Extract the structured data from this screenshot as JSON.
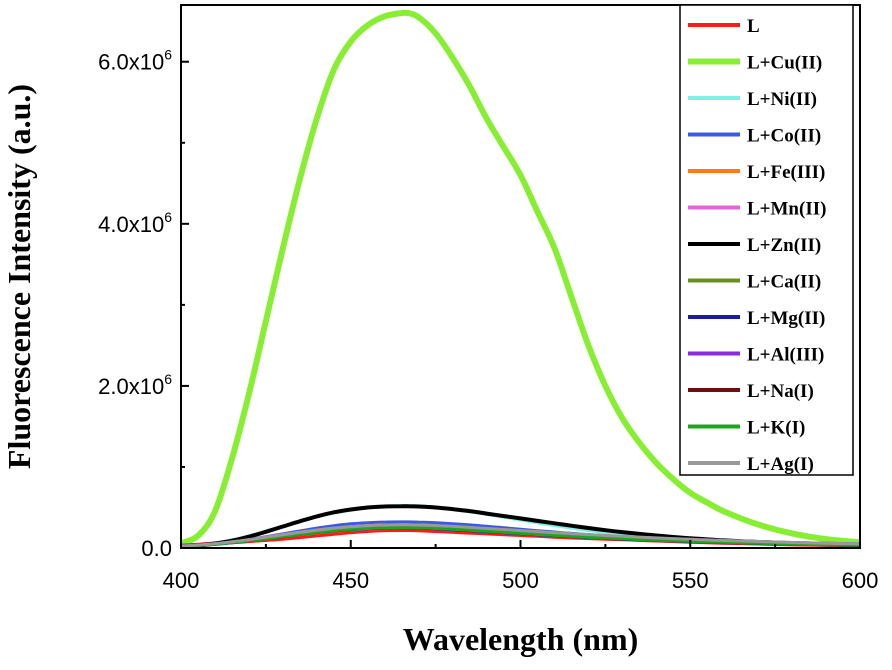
{
  "chart_data": {
    "type": "line",
    "title": "",
    "xlabel": "Wavelength (nm)",
    "ylabel": "Fluorescence Intensity (a.u.)",
    "xlim": [
      400,
      600
    ],
    "ylim": [
      0,
      6700000
    ],
    "x_ticks": [
      400,
      450,
      500,
      550,
      600
    ],
    "x_tick_labels": [
      "400",
      "450",
      "500",
      "550",
      "600"
    ],
    "y_ticks": [
      {
        "value": 0,
        "mantissa": "0.0",
        "exponent": ""
      },
      {
        "value": 2000000,
        "mantissa": "2.0x10",
        "exponent": "6"
      },
      {
        "value": 4000000,
        "mantissa": "4.0x10",
        "exponent": "6"
      },
      {
        "value": 6000000,
        "mantissa": "6.0x10",
        "exponent": "6"
      }
    ],
    "grid": false,
    "legend_position": "top-right",
    "x": [
      400,
      405,
      410,
      415,
      420,
      425,
      430,
      435,
      440,
      445,
      450,
      455,
      460,
      465,
      467,
      470,
      475,
      480,
      485,
      490,
      495,
      500,
      505,
      510,
      515,
      520,
      525,
      530,
      535,
      540,
      545,
      550,
      555,
      560,
      570,
      580,
      590,
      600
    ],
    "series": [
      {
        "name": "L",
        "color": "#ff1a1a",
        "width": 4,
        "values": [
          30000,
          40000,
          55000,
          70000,
          85000,
          100000,
          115000,
          135000,
          155000,
          175000,
          195000,
          210000,
          220000,
          222000,
          222000,
          220000,
          210000,
          200000,
          190000,
          180000,
          170000,
          160000,
          150000,
          140000,
          130000,
          122000,
          115000,
          108000,
          100000,
          92000,
          85000,
          78000,
          72000,
          66000,
          55000,
          45000,
          38000,
          32000
        ]
      },
      {
        "name": "L+Cu(II)",
        "color": "#88ee33",
        "width": 6,
        "values": [
          60000,
          150000,
          450000,
          1100000,
          1900000,
          2800000,
          3700000,
          4550000,
          5300000,
          5900000,
          6250000,
          6450000,
          6560000,
          6600000,
          6600000,
          6550000,
          6350000,
          6050000,
          5700000,
          5300000,
          4950000,
          4600000,
          4150000,
          3700000,
          3100000,
          2500000,
          2000000,
          1600000,
          1300000,
          1050000,
          850000,
          680000,
          560000,
          450000,
          290000,
          180000,
          110000,
          70000
        ]
      },
      {
        "name": "L+Ni(II)",
        "color": "#7ff0e6",
        "width": 3,
        "values": [
          20000,
          35000,
          60000,
          100000,
          150000,
          210000,
          270000,
          330000,
          385000,
          430000,
          465000,
          495000,
          515000,
          525000,
          525000,
          520000,
          505000,
          480000,
          450000,
          415000,
          380000,
          345000,
          310000,
          275000,
          245000,
          215000,
          190000,
          168000,
          150000,
          135000,
          120000,
          108000,
          97000,
          87000,
          70000,
          57000,
          46000,
          38000
        ]
      },
      {
        "name": "L+Co(II)",
        "color": "#3b5bdb",
        "width": 3,
        "values": [
          20000,
          30000,
          50000,
          75000,
          105000,
          140000,
          175000,
          210000,
          245000,
          275000,
          298000,
          312000,
          320000,
          322000,
          322000,
          320000,
          312000,
          300000,
          285000,
          268000,
          250000,
          232000,
          214000,
          197000,
          180000,
          165000,
          150000,
          137000,
          125000,
          114000,
          104000,
          95000,
          87000,
          80000,
          67000,
          56000,
          47000,
          40000
        ]
      },
      {
        "name": "L+Fe(III)",
        "color": "#ff7a1a",
        "width": 3,
        "values": [
          25000,
          35000,
          50000,
          70000,
          92000,
          115000,
          140000,
          163000,
          185000,
          205000,
          222000,
          235000,
          242000,
          245000,
          245000,
          243000,
          236000,
          226000,
          214000,
          201000,
          188000,
          175000,
          162000,
          150000,
          139000,
          129000,
          120000,
          112000,
          104000,
          96000,
          89000,
          82000,
          75000,
          69000,
          58000,
          48000,
          40000,
          34000
        ]
      },
      {
        "name": "L+Mn(II)",
        "color": "#e066d8",
        "width": 3,
        "values": [
          25000,
          35000,
          55000,
          78000,
          105000,
          135000,
          165000,
          195000,
          222000,
          245000,
          262000,
          273000,
          280000,
          282000,
          282000,
          280000,
          273000,
          262000,
          250000,
          237000,
          224000,
          211000,
          198000,
          186000,
          174000,
          163000,
          152000,
          142000,
          133000,
          124000,
          116000,
          108000,
          100000,
          93000,
          80000,
          68000,
          58000,
          50000
        ]
      },
      {
        "name": "L+Zn(II)",
        "color": "#000000",
        "width": 4,
        "values": [
          20000,
          30000,
          55000,
          90000,
          140000,
          200000,
          265000,
          330000,
          390000,
          440000,
          475000,
          500000,
          512000,
          515000,
          515000,
          512000,
          500000,
          480000,
          455000,
          425000,
          395000,
          365000,
          335000,
          305000,
          275000,
          247000,
          220000,
          196000,
          174000,
          154000,
          136000,
          120000,
          106000,
          94000,
          74000,
          58000,
          46000,
          37000
        ]
      },
      {
        "name": "L+Ca(II)",
        "color": "#6b8e23",
        "width": 3,
        "values": [
          22000,
          32000,
          48000,
          68000,
          92000,
          118000,
          145000,
          172000,
          197000,
          218000,
          235000,
          247000,
          254000,
          256000,
          256000,
          254000,
          247000,
          237000,
          225000,
          212000,
          199000,
          186000,
          173000,
          161000,
          149000,
          138000,
          128000,
          119000,
          110000,
          102000,
          94000,
          87000,
          80000,
          74000,
          62000,
          52000,
          44000,
          37000
        ]
      },
      {
        "name": "L+Mg(II)",
        "color": "#1a1aa8",
        "width": 3,
        "values": [
          20000,
          30000,
          45000,
          65000,
          88000,
          113000,
          140000,
          166000,
          190000,
          210000,
          226000,
          237000,
          243000,
          245000,
          245000,
          243000,
          236000,
          226000,
          214000,
          201000,
          188000,
          175000,
          162000,
          150000,
          139000,
          128000,
          118000,
          109000,
          101000,
          93000,
          86000,
          79000,
          73000,
          67000,
          56000,
          47000,
          39000,
          33000
        ]
      },
      {
        "name": "L+Al(III)",
        "color": "#8a2be2",
        "width": 3,
        "values": [
          25000,
          35000,
          50000,
          70000,
          95000,
          120000,
          148000,
          175000,
          200000,
          222000,
          240000,
          252000,
          260000,
          262000,
          262000,
          260000,
          253000,
          244000,
          234000,
          223000,
          212000,
          201000,
          190000,
          179000,
          168000,
          158000,
          148000,
          139000,
          130000,
          122000,
          114000,
          107000,
          100000,
          93000,
          80000,
          68000,
          58000,
          50000
        ]
      },
      {
        "name": "L+Na(I)",
        "color": "#6b0f0f",
        "width": 3,
        "values": [
          24000,
          34000,
          50000,
          70000,
          94000,
          120000,
          147000,
          173000,
          198000,
          219000,
          236000,
          248000,
          255000,
          257000,
          257000,
          255000,
          248000,
          238000,
          226000,
          213000,
          200000,
          187000,
          174000,
          162000,
          150000,
          139000,
          129000,
          120000,
          111000,
          103000,
          95000,
          88000,
          81000,
          75000,
          63000,
          53000,
          45000,
          38000
        ]
      },
      {
        "name": "L+K(I)",
        "color": "#1aa81a",
        "width": 3,
        "values": [
          22000,
          32000,
          47000,
          67000,
          90000,
          115000,
          142000,
          168000,
          192000,
          213000,
          230000,
          241000,
          248000,
          250000,
          250000,
          248000,
          241000,
          231000,
          219000,
          206000,
          193000,
          180000,
          167000,
          155000,
          143000,
          132000,
          122000,
          113000,
          104000,
          96000,
          89000,
          82000,
          75000,
          69000,
          58000,
          48000,
          40000,
          34000
        ]
      },
      {
        "name": "L+Ag(I)",
        "color": "#999999",
        "width": 3,
        "values": [
          26000,
          36000,
          54000,
          77000,
          104000,
          133000,
          163000,
          193000,
          220000,
          244000,
          262000,
          275000,
          283000,
          285000,
          285000,
          283000,
          276000,
          266000,
          254000,
          241000,
          228000,
          215000,
          202000,
          189000,
          177000,
          165000,
          154000,
          144000,
          134000,
          125000,
          116000,
          108000,
          100000,
          93000,
          80000,
          68000,
          58000,
          50000
        ]
      }
    ]
  }
}
